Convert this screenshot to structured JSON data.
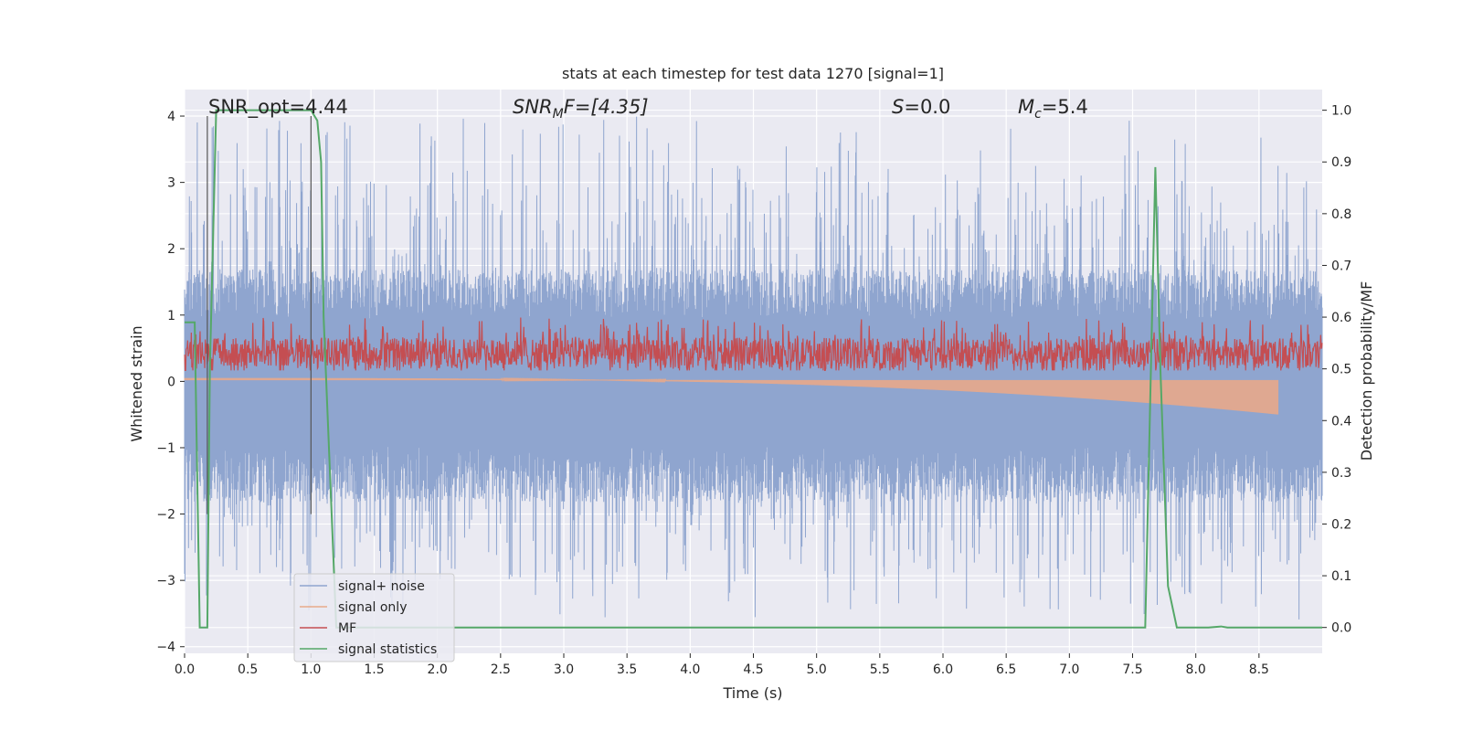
{
  "chart_data": {
    "type": "line",
    "title": "stats at each timestep for test data 1270 [signal=1]",
    "xlabel": "Time (s)",
    "ylabel": "Whitened strain",
    "y2label": "Detection probability/MF",
    "xlim": [
      0,
      9.0
    ],
    "ylim": [
      -4.1,
      4.4
    ],
    "y2lim": [
      -0.05,
      1.04
    ],
    "x_ticks": [
      0.0,
      0.5,
      1.0,
      1.5,
      2.0,
      2.5,
      3.0,
      3.5,
      4.0,
      4.5,
      5.0,
      5.5,
      6.0,
      6.5,
      7.0,
      7.5,
      8.0,
      8.5
    ],
    "x_tick_labels": [
      "0.0",
      "0.5",
      "1.0",
      "1.5",
      "2.0",
      "2.5",
      "3.0",
      "3.5",
      "4.0",
      "4.5",
      "5.0",
      "5.5",
      "6.0",
      "6.5",
      "7.0",
      "7.5",
      "8.0",
      "8.5"
    ],
    "y_ticks": [
      4,
      3,
      2,
      1,
      0,
      -1,
      -2,
      -3,
      -4
    ],
    "y_tick_labels": [
      "4",
      "3",
      "2",
      "1",
      "0",
      "−1",
      "−2",
      "−3",
      "−4"
    ],
    "y2_ticks": [
      1.0,
      0.9,
      0.8,
      0.7,
      0.6,
      0.5,
      0.4,
      0.3,
      0.2,
      0.1,
      0.0
    ],
    "y2_tick_labels": [
      "1.0",
      "0.9",
      "0.8",
      "0.7",
      "0.6",
      "0.5",
      "0.4",
      "0.3",
      "0.2",
      "0.1",
      "0.0"
    ],
    "grid": true,
    "legend_position": "lower-left",
    "annotations": {
      "snr_opt": "SNR_opt=4.44",
      "snr_mf_main": "SNR",
      "snr_mf_sub": "M",
      "snr_mf_rest": "F=[4.35]",
      "s_var": "S",
      "s_rest": "=0.0",
      "mc_var": "M",
      "mc_sub": "c",
      "mc_rest": "=5.4"
    },
    "vlines": [
      0.18,
      1.0
    ],
    "series": [
      {
        "name": "signal+ noise",
        "color": "#8fa5cf",
        "envelope_upper": 1.3,
        "envelope_lower": -1.4,
        "peak_max": 4.0,
        "peak_min": -3.6
      },
      {
        "name": "signal only",
        "color": "#e8a98a",
        "start_amplitude": 0.05,
        "end_amplitude": -0.5,
        "end_x": 8.65
      },
      {
        "name": "MF",
        "color": "#c44e52",
        "y2_baseline": 0.52,
        "y2_peak": 0.6
      },
      {
        "name": "signal statistics",
        "color": "#55a868",
        "x": [
          0.0,
          0.05,
          0.08,
          0.12,
          0.18,
          0.2,
          0.25,
          0.6,
          1.0,
          1.05,
          1.08,
          1.1,
          1.2,
          5.0,
          7.55,
          7.6,
          7.68,
          7.72,
          7.78,
          7.85,
          8.1,
          8.2,
          8.25,
          9.0
        ],
        "y": [
          0.59,
          0.59,
          0.59,
          0.0,
          0.0,
          0.5,
          1.0,
          1.0,
          1.0,
          0.98,
          0.9,
          0.6,
          0.0,
          0.0,
          0.0,
          0.0,
          0.89,
          0.5,
          0.08,
          0.0,
          0.0,
          0.002,
          0.0,
          0.0
        ]
      }
    ]
  }
}
